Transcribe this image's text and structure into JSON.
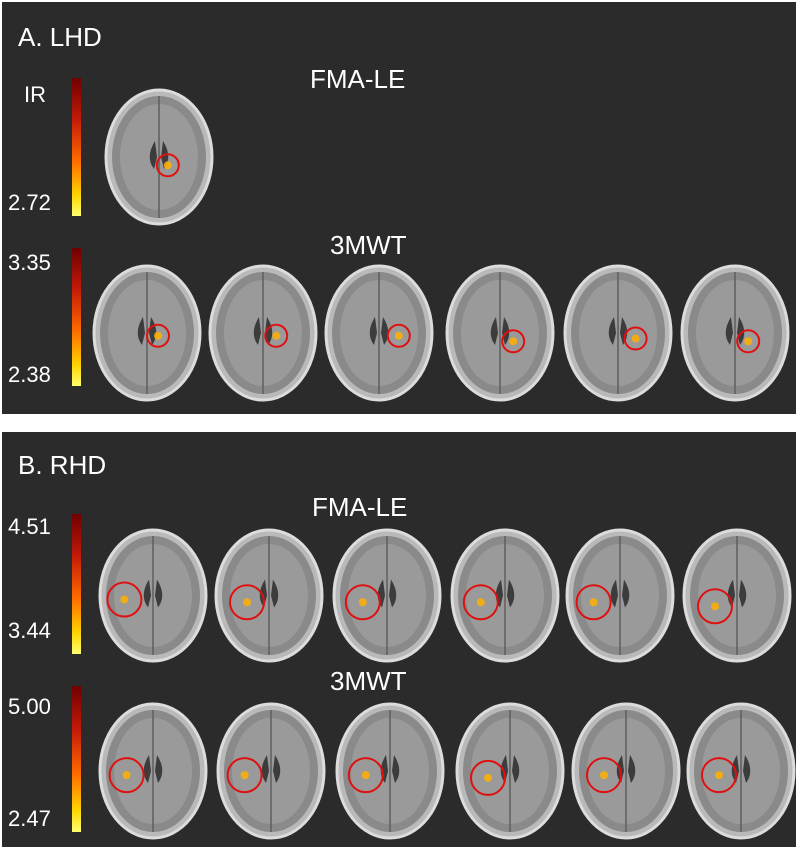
{
  "panels": {
    "a": {
      "title": "A. LHD",
      "rows": [
        {
          "title": "FMA-LE",
          "scale_max": "IR",
          "scale_min": "2.72",
          "slices": 1
        },
        {
          "title": "3MWT",
          "scale_max": "3.35",
          "scale_min": "2.38",
          "slices": 6
        }
      ]
    },
    "b": {
      "title": "B. RHD",
      "rows": [
        {
          "title": "FMA-LE",
          "scale_max": "4.51",
          "scale_min": "3.44",
          "slices": 6
        },
        {
          "title": "3MWT",
          "scale_max": "5.00",
          "scale_min": "2.47",
          "slices": 6
        }
      ]
    }
  },
  "colors": {
    "background": "#2b2b2b",
    "highlight_circle": "#e01010",
    "colorbar_top": "#6e0000",
    "colorbar_bottom": "#ffff70"
  }
}
